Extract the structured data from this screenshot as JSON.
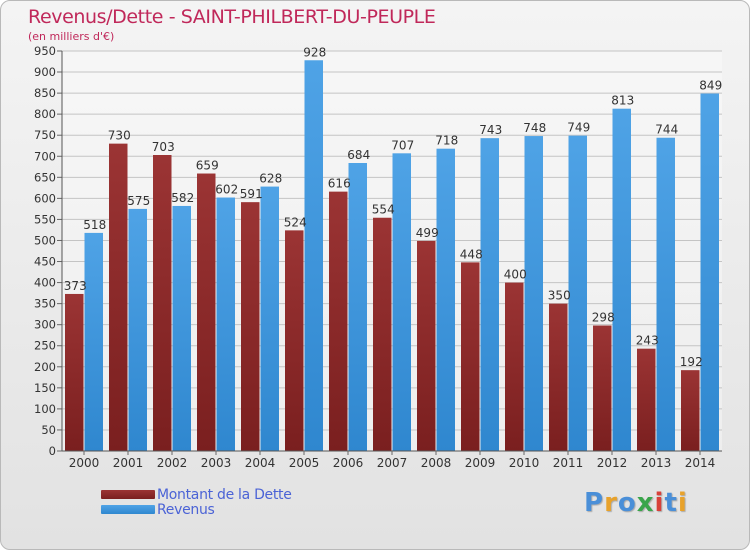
{
  "title": "Revenus/Dette - SAINT-PHILBERT-DU-PEUPLE",
  "subtitle": "(en milliers d'€)",
  "logo": {
    "text": "Proxiti",
    "colors": [
      "#4a8fd8",
      "#e8a22b",
      "#4a8fd8",
      "#3aa54a",
      "#d8413a",
      "#4a8fd8",
      "#e8a22b"
    ]
  },
  "colors": {
    "debt": "#7a1f1f",
    "debt_light": "#9b3434",
    "revenue": "#4fa3e6",
    "revenue_dark": "#2f87cf",
    "title": "#c0285a",
    "legend_text": "#4b63d6"
  },
  "chart_data": {
    "type": "bar",
    "title": "Revenus/Dette - SAINT-PHILBERT-DU-PEUPLE",
    "ylabel": "(en milliers d'€)",
    "ylim": [
      0,
      950
    ],
    "yticks": [
      0,
      50,
      100,
      150,
      200,
      250,
      300,
      350,
      400,
      450,
      500,
      550,
      600,
      650,
      700,
      750,
      800,
      850,
      900,
      950
    ],
    "grid": true,
    "legend_position": "bottom-left",
    "categories": [
      "2000",
      "2001",
      "2002",
      "2003",
      "2004",
      "2005",
      "2006",
      "2007",
      "2008",
      "2009",
      "2010",
      "2011",
      "2012",
      "2013",
      "2014"
    ],
    "series": [
      {
        "name": "Montant de la Dette",
        "values": [
          373,
          730,
          703,
          659,
          591,
          524,
          616,
          554,
          499,
          448,
          400,
          350,
          298,
          243,
          192
        ]
      },
      {
        "name": "Revenus",
        "values": [
          518,
          575,
          582,
          602,
          628,
          928,
          684,
          707,
          718,
          743,
          748,
          749,
          813,
          744,
          849
        ]
      }
    ]
  }
}
